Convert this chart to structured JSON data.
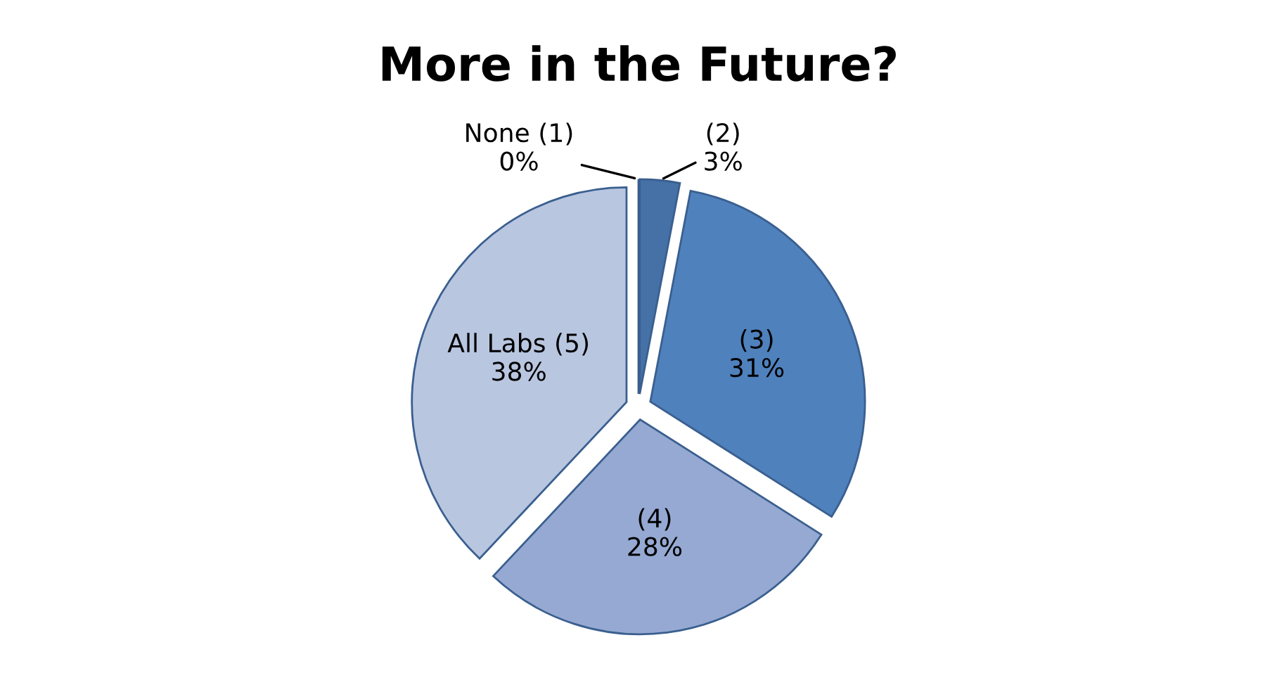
{
  "chart_data": {
    "type": "pie",
    "title": "More in the Future?",
    "categories": [
      "None (1)",
      "(2)",
      "(3)",
      "(4)",
      "All Labs (5)"
    ],
    "values": [
      0,
      3,
      31,
      28,
      38
    ],
    "value_labels": [
      "0%",
      "3%",
      "31%",
      "28%",
      "38%"
    ],
    "colors": [
      "#4f81bd",
      "#4571a6",
      "#4f81bd",
      "#95a9d2",
      "#b9c6e0"
    ]
  }
}
